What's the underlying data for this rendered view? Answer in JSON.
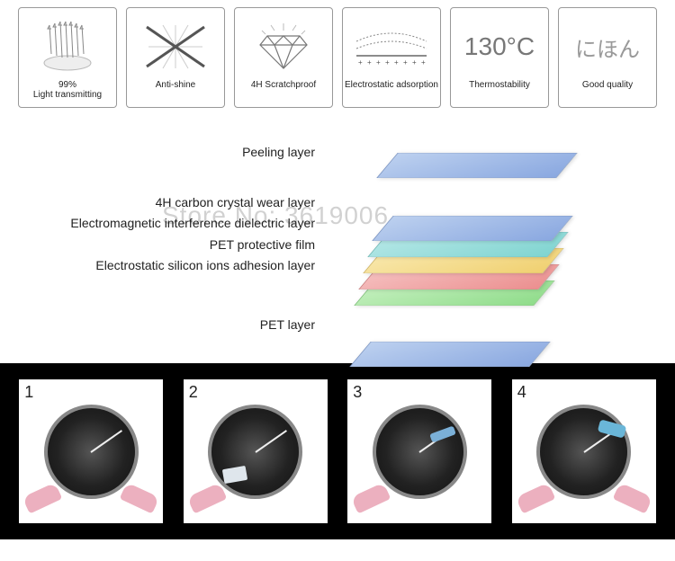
{
  "features": [
    {
      "label": "99%\nLight transmitting"
    },
    {
      "label": "Anti-shine"
    },
    {
      "label": "4H Scratchproof"
    },
    {
      "label": "Electrostatic adsorption"
    },
    {
      "label": "Thermostability",
      "thermo": "130°C"
    },
    {
      "label": "Good quality",
      "jp": "にほん"
    }
  ],
  "layers": {
    "labels": [
      "Peeling layer",
      "4H carbon crystal wear layer",
      "Electromagnetic interference dielectric layer",
      "PET protective film",
      "Electrostatic silicon ions adhesion layer",
      "PET layer"
    ],
    "sheet_colors": [
      "linear-gradient(135deg,#bcd0ef,#8aa8e0)",
      "linear-gradient(135deg,#bcd0ef,#8aa8e0)",
      "linear-gradient(135deg,#b8e8e8,#7fd4d0)",
      "linear-gradient(135deg,#f9e9b0,#f0d070)",
      "linear-gradient(135deg,#f6c3c3,#eb8f8f)",
      "linear-gradient(135deg,#c6f0c0,#8fdc8a)",
      "linear-gradient(135deg,#bcd0ef,#8aa8e0)"
    ]
  },
  "watermark": "Store No: 3619006",
  "steps": [
    "1",
    "2",
    "3",
    "4"
  ],
  "colors": {
    "feature_border": "#999",
    "strip_bg": "#000000",
    "text": "#222222",
    "thermo_text": "#777777",
    "jp_text": "#999999"
  }
}
